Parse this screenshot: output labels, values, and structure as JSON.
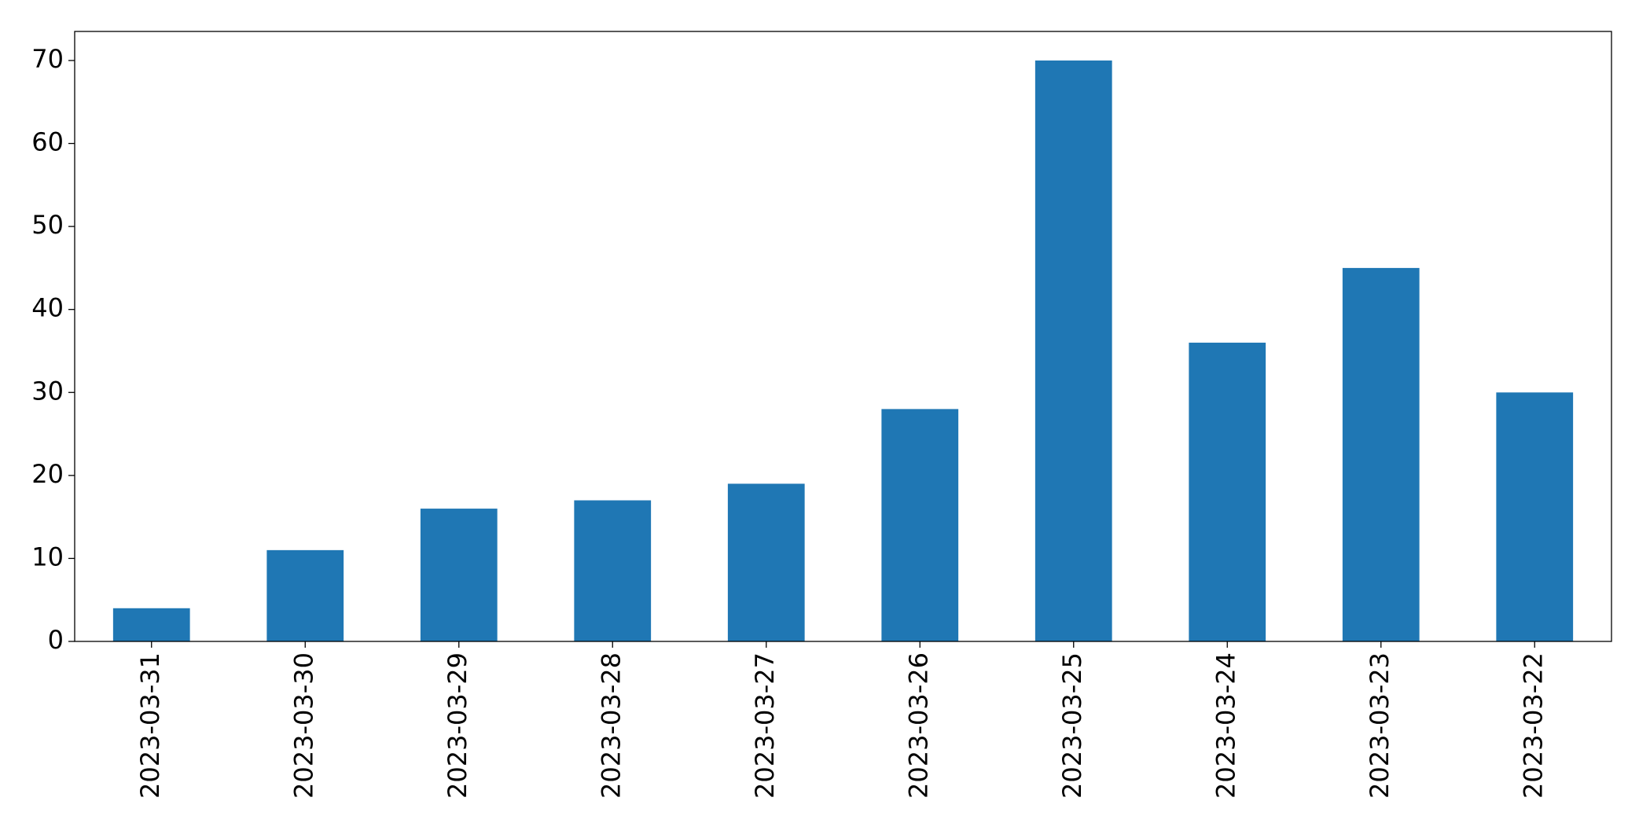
{
  "chart_data": {
    "type": "bar",
    "categories": [
      "2023-03-31",
      "2023-03-30",
      "2023-03-29",
      "2023-03-28",
      "2023-03-27",
      "2023-03-26",
      "2023-03-25",
      "2023-03-24",
      "2023-03-23",
      "2023-03-22"
    ],
    "values": [
      4,
      11,
      16,
      17,
      19,
      28,
      70,
      36,
      45,
      30
    ],
    "color": "#1f77b4",
    "ylim": [
      0,
      73.5
    ],
    "yticks": [
      0,
      10,
      20,
      30,
      40,
      50,
      60,
      70
    ],
    "grid": false
  }
}
